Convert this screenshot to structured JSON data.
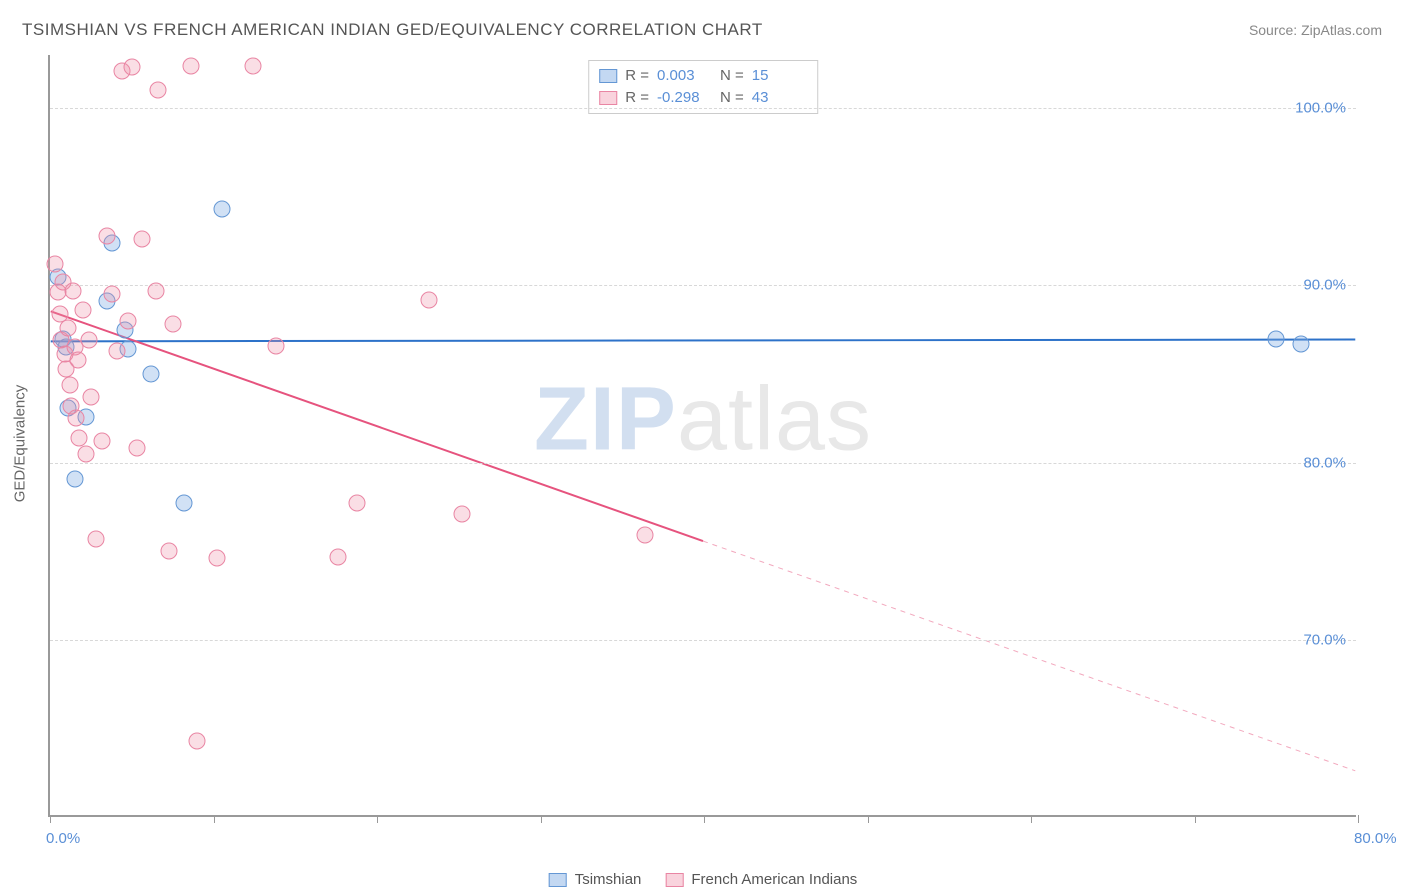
{
  "title": "TSIMSHIAN VS FRENCH AMERICAN INDIAN GED/EQUIVALENCY CORRELATION CHART",
  "source": "Source: ZipAtlas.com",
  "y_axis_label": "GED/Equivalency",
  "watermark_a": "ZIP",
  "watermark_b": "atlas",
  "chart": {
    "type": "scatter",
    "xlim": [
      0,
      80
    ],
    "ylim": [
      60,
      103
    ],
    "xticks": [
      0,
      10,
      20,
      30,
      40,
      50,
      60,
      70,
      80
    ],
    "xtick_labels": {
      "0": "0.0%",
      "80": "80.0%"
    },
    "yticks": [
      70,
      80,
      90,
      100
    ],
    "ytick_labels": {
      "70": "70.0%",
      "80": "80.0%",
      "90": "90.0%",
      "100": "100.0%"
    },
    "grid_color": "#d8d8d8",
    "background_color": "#ffffff",
    "axis_color": "#999999",
    "label_color": "#5a8fd6",
    "marker_radius": 8.5,
    "series": [
      {
        "name": "Tsimshian",
        "color_fill": "rgba(122,168,226,0.35)",
        "color_stroke": "#6497d4",
        "R": "0.003",
        "N": "15",
        "trend": {
          "x1": 0,
          "y1": 86.8,
          "x2": 80,
          "y2": 86.9,
          "color": "#2d72c9",
          "width": 2,
          "dash_after_x": 80
        },
        "points": [
          [
            0.5,
            90.5
          ],
          [
            0.8,
            87.0
          ],
          [
            1.0,
            86.5
          ],
          [
            1.1,
            83.1
          ],
          [
            1.5,
            79.1
          ],
          [
            2.2,
            82.6
          ],
          [
            3.5,
            89.1
          ],
          [
            3.8,
            92.4
          ],
          [
            4.6,
            87.5
          ],
          [
            4.8,
            86.4
          ],
          [
            6.2,
            85.0
          ],
          [
            8.2,
            77.7
          ],
          [
            10.5,
            94.3
          ],
          [
            75.0,
            87.0
          ],
          [
            76.5,
            86.7
          ]
        ]
      },
      {
        "name": "French American Indians",
        "color_fill": "rgba(240,145,170,0.30)",
        "color_stroke": "#e985a3",
        "R": "-0.298",
        "N": "43",
        "trend": {
          "x1": 0,
          "y1": 88.5,
          "x2": 80,
          "y2": 62.5,
          "color": "#e6537e",
          "width": 2,
          "dash_after_x": 40
        },
        "points": [
          [
            0.3,
            91.2
          ],
          [
            0.5,
            89.6
          ],
          [
            0.6,
            88.4
          ],
          [
            0.7,
            86.9
          ],
          [
            0.8,
            90.2
          ],
          [
            0.9,
            86.1
          ],
          [
            1.0,
            85.3
          ],
          [
            1.1,
            87.6
          ],
          [
            1.2,
            84.4
          ],
          [
            1.3,
            83.2
          ],
          [
            1.4,
            89.7
          ],
          [
            1.5,
            86.5
          ],
          [
            1.6,
            82.5
          ],
          [
            1.7,
            85.8
          ],
          [
            1.8,
            81.4
          ],
          [
            2.0,
            88.6
          ],
          [
            2.2,
            80.5
          ],
          [
            2.4,
            86.9
          ],
          [
            2.5,
            83.7
          ],
          [
            2.8,
            75.7
          ],
          [
            3.2,
            81.2
          ],
          [
            3.5,
            92.8
          ],
          [
            3.8,
            89.5
          ],
          [
            4.1,
            86.3
          ],
          [
            4.4,
            102.1
          ],
          [
            4.8,
            88.0
          ],
          [
            5.0,
            102.3
          ],
          [
            5.3,
            80.8
          ],
          [
            5.6,
            92.6
          ],
          [
            6.5,
            89.7
          ],
          [
            6.6,
            101.0
          ],
          [
            7.3,
            75.0
          ],
          [
            7.5,
            87.8
          ],
          [
            8.6,
            102.4
          ],
          [
            9.0,
            64.3
          ],
          [
            10.2,
            74.6
          ],
          [
            12.4,
            102.4
          ],
          [
            13.8,
            86.6
          ],
          [
            17.6,
            74.7
          ],
          [
            18.8,
            77.7
          ],
          [
            23.2,
            89.2
          ],
          [
            25.2,
            77.1
          ],
          [
            36.4,
            75.9
          ]
        ]
      }
    ]
  },
  "legend": [
    {
      "swatch": "blue",
      "label": "Tsimshian"
    },
    {
      "swatch": "pink",
      "label": "French American Indians"
    }
  ]
}
